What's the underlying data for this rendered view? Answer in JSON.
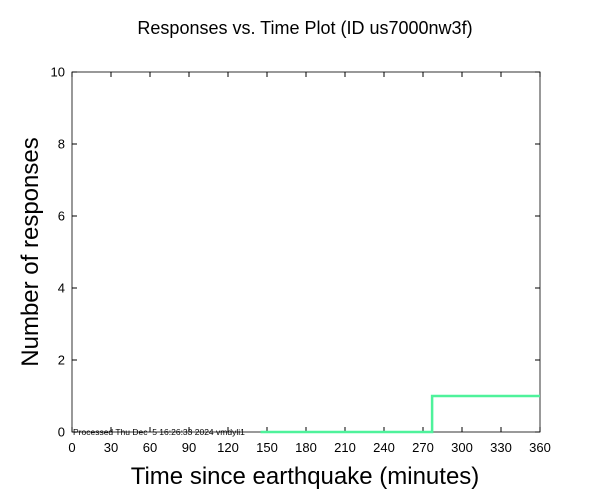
{
  "chart_data": {
    "type": "line",
    "title": "Responses vs. Time Plot (ID us7000nw3f)",
    "xlabel": "Time since earthquake (minutes)",
    "ylabel": "Number of responses",
    "xlim": [
      0,
      360
    ],
    "ylim": [
      0,
      10
    ],
    "xticks": [
      0,
      30,
      60,
      90,
      120,
      150,
      180,
      210,
      240,
      270,
      300,
      330,
      360
    ],
    "xtick_labels": [
      "0",
      "30",
      "60",
      "90",
      "120",
      "150",
      "180",
      "210",
      "240",
      "270",
      "300",
      "330",
      "360"
    ],
    "yticks": [
      0,
      2,
      4,
      6,
      8,
      10
    ],
    "ytick_labels": [
      "0",
      "2",
      "4",
      "6",
      "8",
      "10"
    ],
    "grid": false,
    "series": [
      {
        "name": "responses",
        "color": "#4ef29b",
        "step": true,
        "x": [
          145,
          277,
          277,
          360
        ],
        "y": [
          0,
          0,
          1,
          1
        ]
      }
    ],
    "annotation": "Processed Thu Dec  5 16:26:33 2024 vmdyli1"
  }
}
